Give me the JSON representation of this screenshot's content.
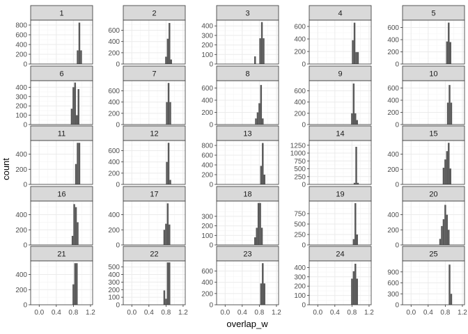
{
  "chart_data": {
    "type": "bar",
    "xlabel": "overlap_w",
    "ylabel": "count",
    "xlim": [
      -0.2,
      1.25
    ],
    "x_ticks": [
      "0.0",
      "0.4",
      "0.8",
      "1.2"
    ],
    "grid": true,
    "panels": [
      {
        "label": "1",
        "ylim": [
          0,
          900
        ],
        "y_ticks": [
          0,
          200,
          400,
          600,
          800
        ],
        "bars": [
          [
            0.88,
            0.92,
            280
          ],
          [
            0.92,
            0.96,
            850
          ],
          [
            0.96,
            1.0,
            280
          ]
        ]
      },
      {
        "label": "2",
        "ylim": [
          0,
          780
        ],
        "y_ticks": [
          0,
          200,
          400,
          600
        ],
        "bars": [
          [
            0.78,
            0.82,
            130
          ],
          [
            0.82,
            0.86,
            450
          ],
          [
            0.86,
            0.9,
            730
          ],
          [
            0.9,
            0.94,
            80
          ]
        ]
      },
      {
        "label": "3",
        "ylim": [
          0,
          460
        ],
        "y_ticks": [
          0,
          100,
          200,
          300,
          400
        ],
        "bars": [
          [
            0.68,
            0.72,
            80
          ],
          [
            0.8,
            0.84,
            270
          ],
          [
            0.84,
            0.88,
            440
          ],
          [
            0.88,
            0.92,
            270
          ]
        ]
      },
      {
        "label": "4",
        "ylim": [
          0,
          700
        ],
        "y_ticks": [
          0,
          200,
          400,
          600
        ],
        "bars": [
          [
            0.8,
            0.84,
            380
          ],
          [
            0.84,
            0.88,
            660
          ],
          [
            0.88,
            0.92,
            190
          ],
          [
            0.92,
            0.96,
            190
          ]
        ]
      },
      {
        "label": "5",
        "ylim": [
          0,
          720
        ],
        "y_ticks": [
          0,
          200,
          400,
          600
        ],
        "bars": [
          [
            0.82,
            0.86,
            370
          ],
          [
            0.86,
            0.9,
            680
          ],
          [
            0.9,
            0.94,
            360
          ]
        ]
      },
      {
        "label": "6",
        "ylim": [
          0,
          470
        ],
        "y_ticks": [
          0,
          100,
          200,
          300,
          400
        ],
        "bars": [
          [
            0.74,
            0.78,
            170
          ],
          [
            0.78,
            0.82,
            400
          ],
          [
            0.82,
            0.86,
            450
          ],
          [
            0.86,
            0.9,
            100
          ],
          [
            0.9,
            0.94,
            380
          ]
        ]
      },
      {
        "label": "7",
        "ylim": [
          0,
          780
        ],
        "y_ticks": [
          0,
          200,
          400,
          600
        ],
        "bars": [
          [
            0.8,
            0.84,
            400
          ],
          [
            0.84,
            0.88,
            740
          ],
          [
            0.88,
            0.92,
            400
          ]
        ]
      },
      {
        "label": "8",
        "ylim": [
          0,
          720
        ],
        "y_ticks": [
          0,
          200,
          400,
          600
        ],
        "bars": [
          [
            0.7,
            0.74,
            100
          ],
          [
            0.74,
            0.78,
            200
          ],
          [
            0.78,
            0.82,
            350
          ],
          [
            0.82,
            0.86,
            650
          ],
          [
            0.86,
            0.9,
            100
          ]
        ]
      },
      {
        "label": "9",
        "ylim": [
          0,
          780
        ],
        "y_ticks": [
          0,
          200,
          400,
          600
        ],
        "bars": [
          [
            0.78,
            0.82,
            200
          ],
          [
            0.82,
            0.86,
            730
          ],
          [
            0.86,
            0.9,
            200
          ],
          [
            0.9,
            0.94,
            80
          ]
        ]
      },
      {
        "label": "10",
        "ylim": [
          0,
          720
        ],
        "y_ticks": [
          0,
          200,
          400,
          600
        ],
        "bars": [
          [
            0.84,
            0.88,
            360
          ],
          [
            0.88,
            0.92,
            650
          ],
          [
            0.92,
            0.96,
            360
          ]
        ]
      },
      {
        "label": "11",
        "ylim": [
          0,
          580
        ],
        "y_ticks": [
          0,
          200,
          400
        ],
        "bars": [
          [
            0.84,
            0.88,
            270
          ],
          [
            0.88,
            0.92,
            550
          ],
          [
            0.92,
            0.96,
            550
          ]
        ]
      },
      {
        "label": "12",
        "ylim": [
          0,
          780
        ],
        "y_ticks": [
          0,
          200,
          400,
          600
        ],
        "bars": [
          [
            0.8,
            0.84,
            400
          ],
          [
            0.84,
            0.88,
            740
          ],
          [
            0.88,
            0.92,
            80
          ]
        ]
      },
      {
        "label": "13",
        "ylim": [
          0,
          900
        ],
        "y_ticks": [
          0,
          200,
          400,
          600,
          800
        ],
        "bars": [
          [
            0.82,
            0.86,
            380
          ],
          [
            0.86,
            0.9,
            850
          ],
          [
            0.9,
            0.94,
            200
          ]
        ]
      },
      {
        "label": "14",
        "ylim": [
          0,
          1400
        ],
        "y_ticks": [
          0,
          250,
          500,
          750,
          1000,
          1250
        ],
        "bars": [
          [
            0.84,
            0.88,
            50
          ],
          [
            0.88,
            0.92,
            1200
          ],
          [
            0.92,
            0.96,
            50
          ]
        ]
      },
      {
        "label": "15",
        "ylim": [
          0,
          580
        ],
        "y_ticks": [
          0,
          200,
          400
        ],
        "bars": [
          [
            0.74,
            0.78,
            220
          ],
          [
            0.78,
            0.82,
            330
          ],
          [
            0.82,
            0.86,
            440
          ],
          [
            0.86,
            0.9,
            550
          ],
          [
            0.9,
            0.94,
            210
          ]
        ]
      },
      {
        "label": "16",
        "ylim": [
          0,
          580
        ],
        "y_ticks": [
          0,
          200,
          400
        ],
        "bars": [
          [
            0.76,
            0.8,
            120
          ],
          [
            0.8,
            0.84,
            540
          ],
          [
            0.84,
            0.88,
            500
          ],
          [
            0.88,
            0.92,
            300
          ]
        ]
      },
      {
        "label": "17",
        "ylim": [
          0,
          580
        ],
        "y_ticks": [
          0,
          200,
          400
        ],
        "bars": [
          [
            0.74,
            0.78,
            200
          ],
          [
            0.78,
            0.82,
            280
          ],
          [
            0.82,
            0.86,
            550
          ],
          [
            0.86,
            0.9,
            270
          ]
        ]
      },
      {
        "label": "18",
        "ylim": [
          0,
          460
        ],
        "y_ticks": [
          0,
          100,
          200,
          300
        ],
        "bars": [
          [
            0.68,
            0.72,
            80
          ],
          [
            0.72,
            0.76,
            180
          ],
          [
            0.76,
            0.8,
            440
          ],
          [
            0.8,
            0.84,
            440
          ],
          [
            0.84,
            0.88,
            180
          ]
        ]
      },
      {
        "label": "19",
        "ylim": [
          0,
          1050
        ],
        "y_ticks": [
          0,
          250,
          500,
          750
        ],
        "bars": [
          [
            0.82,
            0.86,
            140
          ],
          [
            0.86,
            0.9,
            1000
          ],
          [
            0.9,
            0.94,
            250
          ]
        ]
      },
      {
        "label": "20",
        "ylim": [
          0,
          580
        ],
        "y_ticks": [
          0,
          200,
          400
        ],
        "bars": [
          [
            0.66,
            0.7,
            80
          ],
          [
            0.7,
            0.74,
            250
          ],
          [
            0.74,
            0.78,
            340
          ],
          [
            0.78,
            0.82,
            530
          ],
          [
            0.82,
            0.86,
            400
          ],
          [
            0.86,
            0.9,
            200
          ]
        ]
      },
      {
        "label": "21",
        "ylim": [
          0,
          580
        ],
        "y_ticks": [
          0,
          200,
          400
        ],
        "bars": [
          [
            0.78,
            0.82,
            270
          ],
          [
            0.82,
            0.86,
            550
          ],
          [
            0.86,
            0.9,
            550
          ]
        ]
      },
      {
        "label": "22",
        "ylim": [
          0,
          580
        ],
        "y_ticks": [
          0,
          100,
          200,
          300,
          400,
          500
        ],
        "bars": [
          [
            0.74,
            0.78,
            190
          ],
          [
            0.78,
            0.82,
            80
          ],
          [
            0.82,
            0.86,
            560
          ],
          [
            0.86,
            0.9,
            560
          ]
        ]
      },
      {
        "label": "23",
        "ylim": [
          0,
          780
        ],
        "y_ticks": [
          0,
          200,
          400,
          600
        ],
        "bars": [
          [
            0.82,
            0.86,
            380
          ],
          [
            0.86,
            0.9,
            740
          ],
          [
            0.9,
            0.94,
            380
          ]
        ]
      },
      {
        "label": "24",
        "ylim": [
          0,
          470
        ],
        "y_ticks": [
          0,
          100,
          200,
          300,
          400
        ],
        "bars": [
          [
            0.78,
            0.82,
            280
          ],
          [
            0.82,
            0.86,
            360
          ],
          [
            0.86,
            0.9,
            440
          ],
          [
            0.9,
            0.94,
            280
          ]
        ]
      },
      {
        "label": "25",
        "ylim": [
          0,
          1200
        ],
        "y_ticks": [
          0,
          300,
          600,
          900
        ],
        "bars": [
          [
            0.88,
            0.92,
            1100
          ],
          [
            0.92,
            0.96,
            300
          ]
        ]
      }
    ]
  },
  "colors": {
    "bar": "#595959",
    "strip_bg": "#d9d9d9",
    "panel_border": "#333333",
    "grid_major": "#ebebeb",
    "grid_minor": "#f5f5f5",
    "tick_text": "#4d4d4d"
  }
}
